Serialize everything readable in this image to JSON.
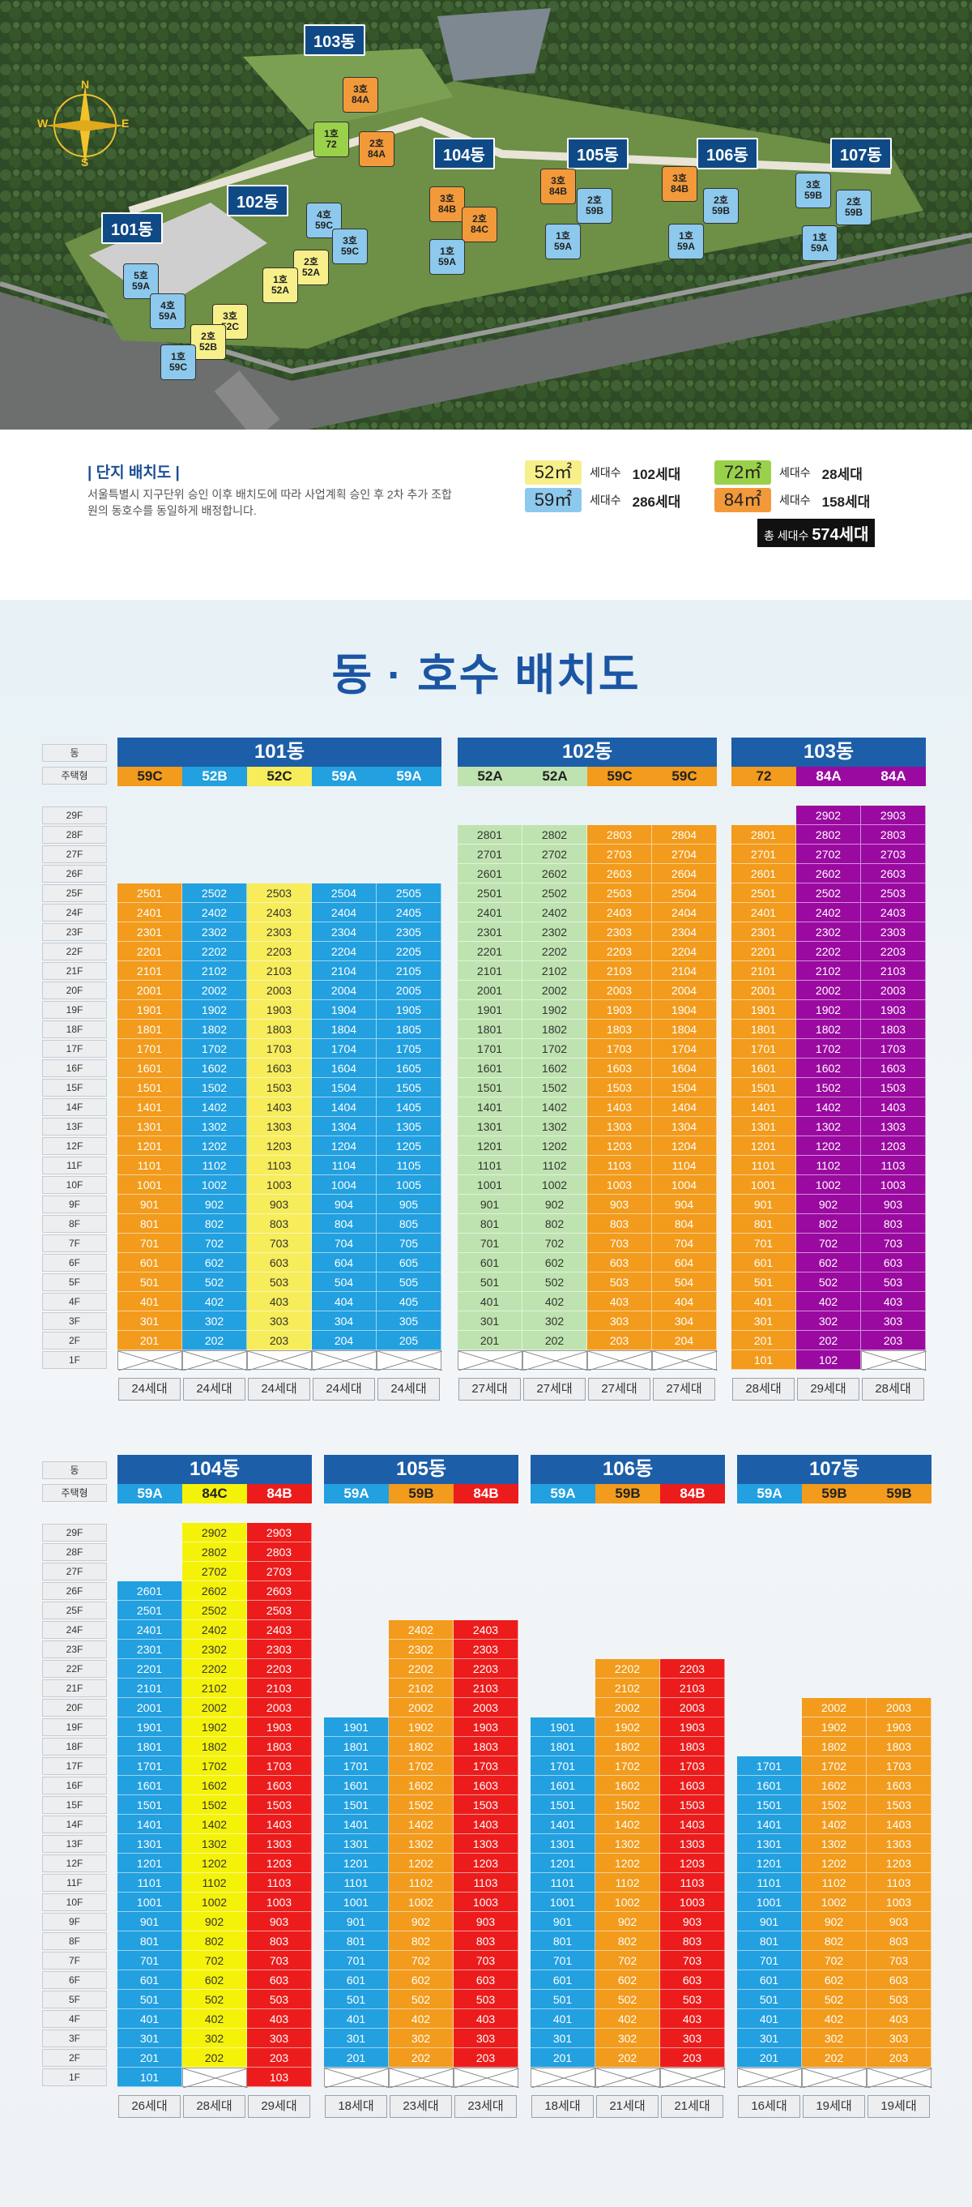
{
  "site_map": {
    "buildings": [
      "101동",
      "102동",
      "103동",
      "104동",
      "105동",
      "106동",
      "107동"
    ],
    "compass_letters": [
      "N",
      "E",
      "S",
      "W"
    ],
    "units": [
      [
        "5호",
        "59A"
      ],
      [
        "4호",
        "59A"
      ],
      [
        "3호",
        "52C"
      ],
      [
        "2호",
        "52B"
      ],
      [
        "1호",
        "59C"
      ],
      [
        "4호",
        "59C"
      ],
      [
        "3호",
        "59C"
      ],
      [
        "2호",
        "52A"
      ],
      [
        "1호",
        "52A"
      ],
      [
        "3호",
        "84A"
      ],
      [
        "1호",
        "72"
      ],
      [
        "2호",
        "84A"
      ],
      [
        "3호",
        "84B"
      ],
      [
        "2호",
        "84C"
      ],
      [
        "1호",
        "59A"
      ],
      [
        "3호",
        "84B"
      ],
      [
        "2호",
        "59B"
      ],
      [
        "1호",
        "59A"
      ],
      [
        "3호",
        "84B"
      ],
      [
        "2호",
        "59B"
      ],
      [
        "1호",
        "59A"
      ],
      [
        "3호",
        "59B"
      ],
      [
        "2호",
        "59B"
      ],
      [
        "1호",
        "59A"
      ]
    ]
  },
  "info": {
    "title": "| 단지 배치도 |",
    "desc": "서울특별시 지구단위 승인 이후 배치도에 따라 사업계획 승인 후 2차 추가 조합원의 동호수를 동일하게 배정합니다.",
    "legend": [
      {
        "type": "52㎡",
        "label": "세대수",
        "count": "102세대",
        "color": "#f7f08a"
      },
      {
        "type": "72㎡",
        "label": "세대수",
        "count": "28세대",
        "color": "#9ad14a"
      },
      {
        "type": "59㎡",
        "label": "세대수",
        "count": "286세대",
        "color": "#8dc9ec"
      },
      {
        "type": "84㎡",
        "label": "세대수",
        "count": "158세대",
        "color": "#f29a3a"
      }
    ],
    "total_label": "총 세대수",
    "total_value": "574세대"
  },
  "section_title": "동 · 호수 배치도",
  "row_labels": {
    "dong": "동",
    "type": "주택형"
  },
  "colors": {
    "59A": "#22a0e0",
    "59C": "#f29b1c",
    "52B": "#22a0e0",
    "52C": "#f7ec5a",
    "52A": "#bfe3b0",
    "72": "#f29b1c",
    "84A": "#9a0aa0",
    "84C": "#f5f20a",
    "84B": "#ec1c1c",
    "59B": "#f29b1c"
  },
  "top_buildings": [
    {
      "name": "101동",
      "types": [
        "59C",
        "52B",
        "52C",
        "59A",
        "59A"
      ],
      "floors": [
        25,
        25,
        25,
        25,
        25
      ],
      "start": [
        2,
        2,
        2,
        2,
        2
      ],
      "first_floor": [
        "",
        "",
        "",
        "",
        ""
      ],
      "counts": [
        "24세대",
        "24세대",
        "24세대",
        "24세대",
        "24세대"
      ],
      "colors": [
        "#f29b1c",
        "#22a0e0",
        "#f7ec5a",
        "#22a0e0",
        "#22a0e0"
      ],
      "head_colors": [
        "#f29b1c",
        "#22a0e0",
        "#f7ec5a",
        "#22a0e0",
        "#22a0e0"
      ]
    },
    {
      "name": "102동",
      "types": [
        "52A",
        "52A",
        "59C",
        "59C"
      ],
      "floors": [
        28,
        28,
        28,
        28
      ],
      "start": [
        2,
        2,
        2,
        2
      ],
      "first_floor": [
        "",
        "",
        "",
        ""
      ],
      "counts": [
        "27세대",
        "27세대",
        "27세대",
        "27세대"
      ],
      "colors": [
        "#bfe3b0",
        "#bfe3b0",
        "#f29b1c",
        "#f29b1c"
      ],
      "head_colors": [
        "#bfe3b0",
        "#bfe3b0",
        "#f29b1c",
        "#f29b1c"
      ]
    },
    {
      "name": "103동",
      "types": [
        "72",
        "84A",
        "84A"
      ],
      "floors": [
        28,
        29,
        29
      ],
      "start": [
        1,
        1,
        2
      ],
      "first_floor": [
        "101",
        "102",
        ""
      ],
      "counts": [
        "28세대",
        "29세대",
        "28세대"
      ],
      "colors": [
        "#f29b1c",
        "#9a0aa0",
        "#9a0aa0"
      ],
      "head_colors": [
        "#f29b1c",
        "#9a0aa0",
        "#9a0aa0"
      ]
    }
  ],
  "bottom_buildings": [
    {
      "name": "104동",
      "types": [
        "59A",
        "84C",
        "84B"
      ],
      "floors": [
        26,
        29,
        29
      ],
      "start": [
        1,
        2,
        1
      ],
      "first_floor": [
        "101",
        "",
        "103"
      ],
      "counts": [
        "26세대",
        "28세대",
        "29세대"
      ],
      "colors": [
        "#22a0e0",
        "#f5f20a",
        "#ec1c1c"
      ],
      "head_colors": [
        "#22a0e0",
        "#f5f20a",
        "#ec1c1c"
      ]
    },
    {
      "name": "105동",
      "types": [
        "59A",
        "59B",
        "84B"
      ],
      "floors": [
        19,
        24,
        24
      ],
      "start": [
        2,
        2,
        2
      ],
      "first_floor": [
        "",
        "",
        ""
      ],
      "counts": [
        "18세대",
        "23세대",
        "23세대"
      ],
      "colors": [
        "#22a0e0",
        "#f29b1c",
        "#ec1c1c"
      ],
      "head_colors": [
        "#22a0e0",
        "#f29b1c",
        "#ec1c1c"
      ]
    },
    {
      "name": "106동",
      "types": [
        "59A",
        "59B",
        "84B"
      ],
      "floors": [
        19,
        22,
        22
      ],
      "start": [
        2,
        2,
        2
      ],
      "first_floor": [
        "",
        "",
        ""
      ],
      "counts": [
        "18세대",
        "21세대",
        "21세대"
      ],
      "colors": [
        "#22a0e0",
        "#f29b1c",
        "#ec1c1c"
      ],
      "head_colors": [
        "#22a0e0",
        "#f29b1c",
        "#ec1c1c"
      ]
    },
    {
      "name": "107동",
      "types": [
        "59A",
        "59B",
        "59B"
      ],
      "floors": [
        17,
        20,
        20
      ],
      "start": [
        2,
        2,
        2
      ],
      "first_floor": [
        "",
        "",
        ""
      ],
      "counts": [
        "16세대",
        "19세대",
        "19세대"
      ],
      "colors": [
        "#22a0e0",
        "#f29b1c",
        "#f29b1c"
      ],
      "head_colors": [
        "#22a0e0",
        "#f29b1c",
        "#f29b1c"
      ]
    }
  ],
  "floor_labels": [
    "29F",
    "28F",
    "27F",
    "26F",
    "25F",
    "24F",
    "23F",
    "22F",
    "21F",
    "20F",
    "19F",
    "18F",
    "17F",
    "16F",
    "15F",
    "14F",
    "13F",
    "12F",
    "11F",
    "10F",
    "9F",
    "8F",
    "7F",
    "6F",
    "5F",
    "4F",
    "3F",
    "2F",
    "1F"
  ]
}
